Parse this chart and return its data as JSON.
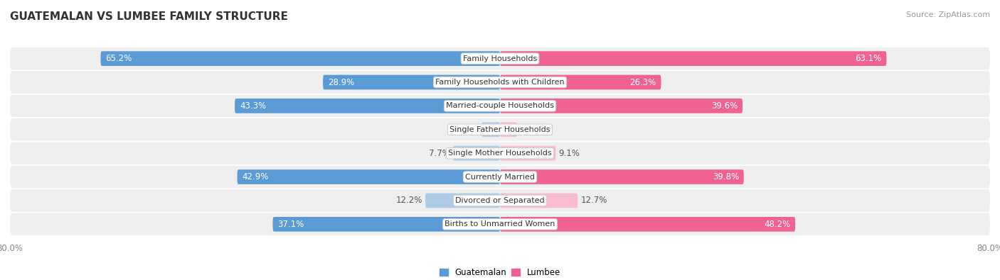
{
  "title": "GUATEMALAN VS LUMBEE FAMILY STRUCTURE",
  "source": "Source: ZipAtlas.com",
  "categories": [
    "Family Households",
    "Family Households with Children",
    "Married-couple Households",
    "Single Father Households",
    "Single Mother Households",
    "Currently Married",
    "Divorced or Separated",
    "Births to Unmarried Women"
  ],
  "guatemalan_values": [
    65.2,
    28.9,
    43.3,
    3.0,
    7.7,
    42.9,
    12.2,
    37.1
  ],
  "lumbee_values": [
    63.1,
    26.3,
    39.6,
    2.8,
    9.1,
    39.8,
    12.7,
    48.2
  ],
  "max_value": 80.0,
  "guatemalan_color_strong": "#5B9BD5",
  "guatemalan_color_light": "#AECCE8",
  "lumbee_color_strong": "#F06292",
  "lumbee_color_light": "#F8BBD0",
  "row_bg_color": "#EFEFEF",
  "row_bg_gap_color": "#FFFFFF",
  "bar_height": 0.62,
  "label_fontsize": 8.5,
  "title_fontsize": 11,
  "source_fontsize": 8,
  "tick_label": "80.0%",
  "legend_labels": [
    "Guatemalan",
    "Lumbee"
  ],
  "strong_threshold": 20.0,
  "inner_label_threshold": 15.0
}
